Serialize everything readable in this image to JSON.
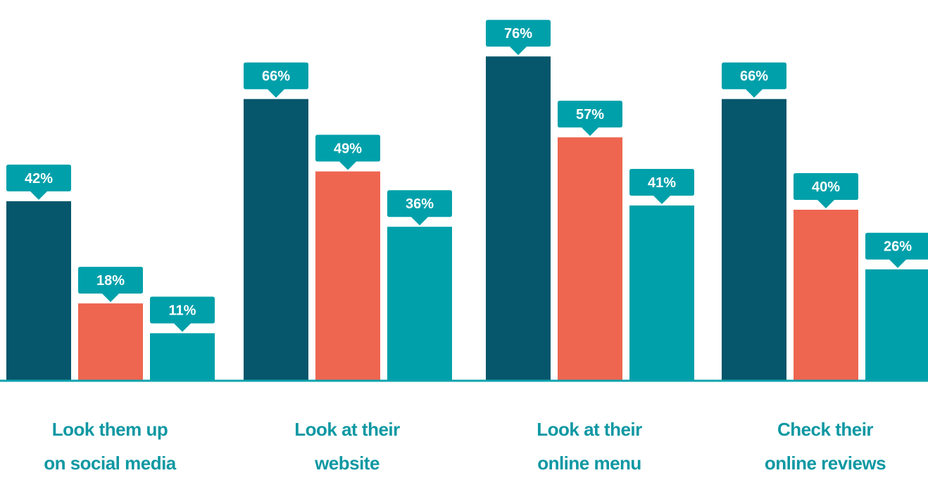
{
  "chart_data": {
    "type": "bar",
    "categories": [
      [
        "Look them up",
        "on social media"
      ],
      [
        "Look at their",
        "website"
      ],
      [
        "Look at their",
        "online menu"
      ],
      [
        "Check their",
        "online reviews"
      ]
    ],
    "series": [
      {
        "values": [
          42,
          66,
          76,
          66
        ],
        "color": "#06566c"
      },
      {
        "values": [
          18,
          49,
          57,
          40
        ],
        "color": "#ee6650"
      },
      {
        "values": [
          11,
          36,
          41,
          26
        ],
        "color": "#00a0aa"
      }
    ],
    "value_labels": [
      [
        "42%",
        "66%",
        "76%",
        "66%"
      ],
      [
        "18%",
        "49%",
        "57%",
        "40%"
      ],
      [
        "11%",
        "36%",
        "41%",
        "26%"
      ]
    ],
    "ylim": [
      0,
      100
    ],
    "title": "",
    "xlabel": "",
    "ylabel": "",
    "grid": false,
    "legend": "none",
    "label_color": "#00a0aa",
    "baseline_color": "#0ea3ad",
    "category_text_color": "#0e98a3"
  }
}
